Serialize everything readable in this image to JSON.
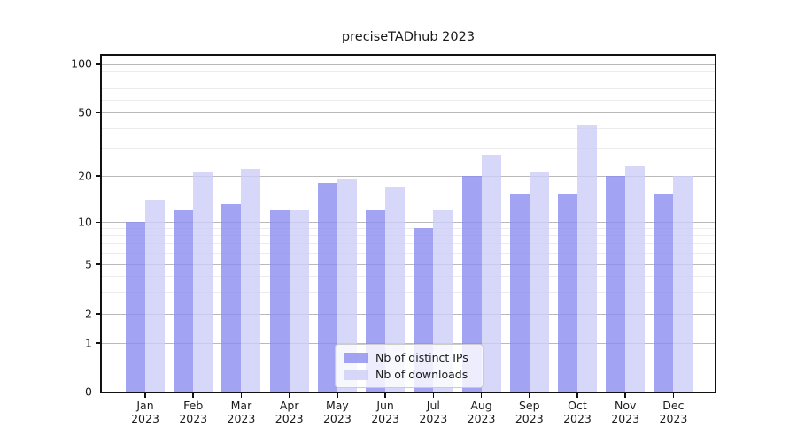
{
  "title": "preciseTADhub 2023",
  "chart_data": {
    "type": "bar",
    "title": "preciseTADhub 2023",
    "categories": [
      "Jan",
      "Feb",
      "Mar",
      "Apr",
      "May",
      "Jun",
      "Jul",
      "Aug",
      "Sep",
      "Oct",
      "Nov",
      "Dec"
    ],
    "year": "2023",
    "series": [
      {
        "name": "Nb of distinct IPs",
        "color": "rgba(140,140,240,0.8)",
        "values": [
          10,
          12,
          13,
          12,
          18,
          12,
          9,
          20,
          15,
          15,
          20,
          15
        ]
      },
      {
        "name": "Nb of downloads",
        "color": "rgba(205,205,247,0.8)",
        "values": [
          14,
          21,
          22,
          12,
          19,
          17,
          12,
          27,
          21,
          42,
          23,
          20
        ]
      }
    ],
    "xlabel": "",
    "ylabel": "",
    "y_axis": {
      "scale": "log-like (compressed near zero, zero baseline shown)",
      "major_ticks": [
        0,
        1,
        2,
        5,
        10,
        20,
        50,
        100
      ],
      "minor_gridlines": [
        3,
        4,
        6,
        7,
        8,
        9,
        30,
        40,
        60,
        70,
        80,
        90
      ],
      "ylim_top_approx": 115
    },
    "grid": true,
    "legend": {
      "position": "inside lower center-right",
      "entries": [
        "Nb of distinct IPs",
        "Nb of downloads"
      ]
    }
  },
  "colors": {
    "bar_distinct_ips": "#a3a3f1",
    "bar_downloads": "#d7d7f8",
    "major_grid": "#b9b9b9",
    "minor_grid": "#ececec",
    "spine": "#111111",
    "text": "#1a1a1a"
  }
}
